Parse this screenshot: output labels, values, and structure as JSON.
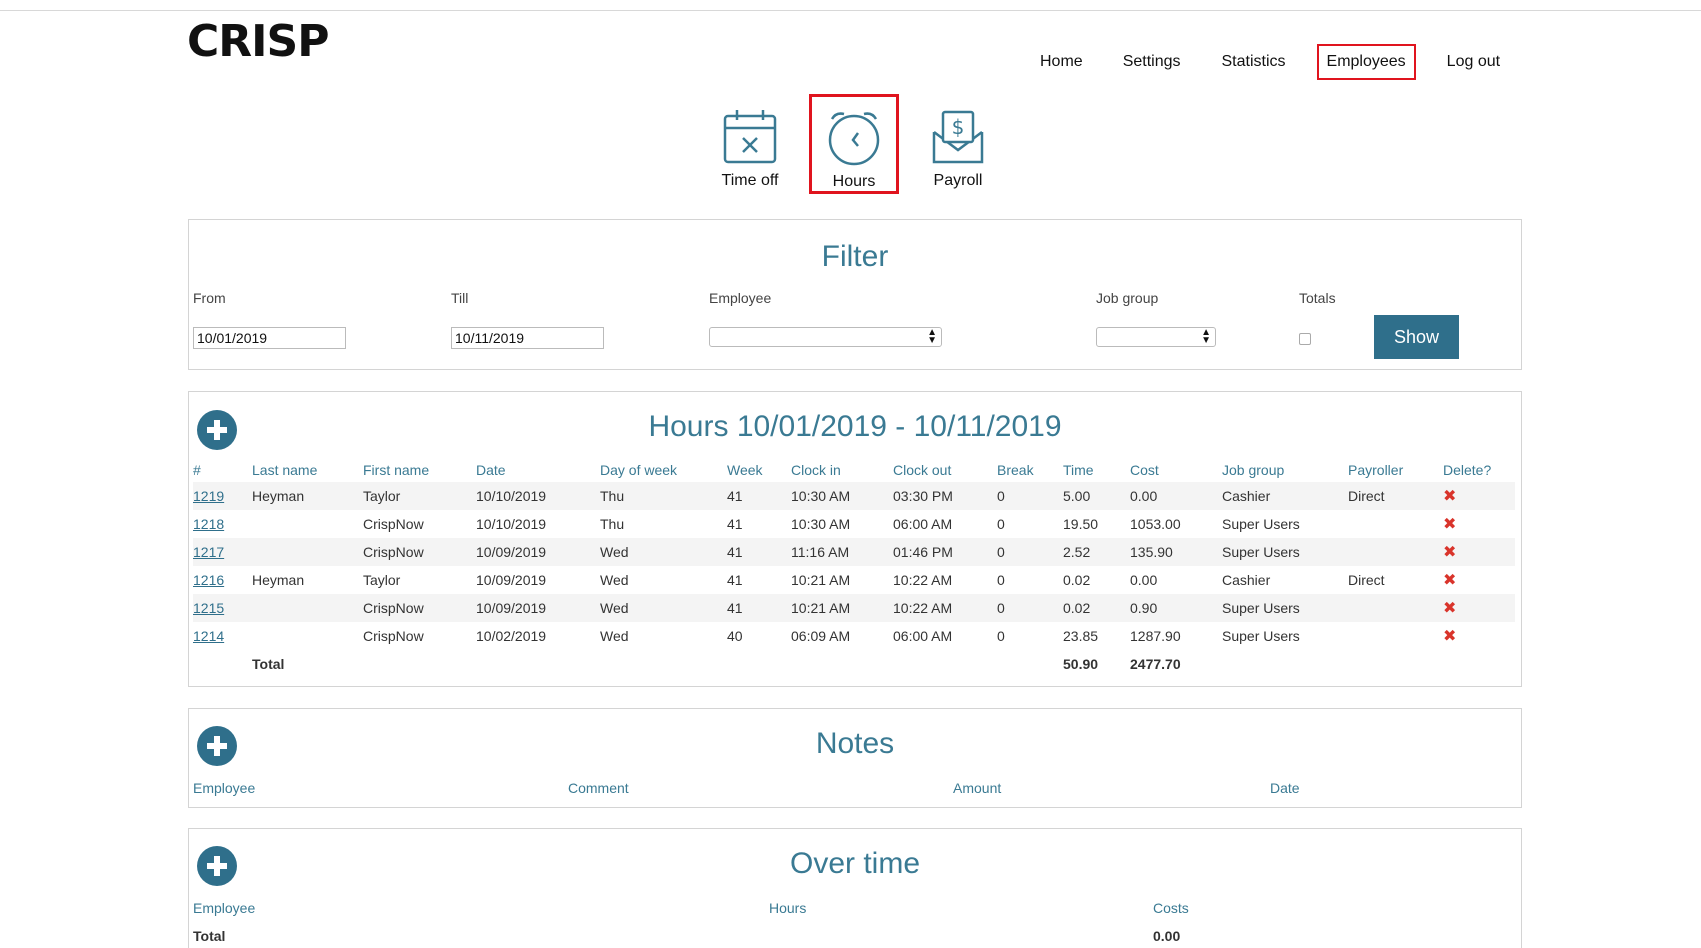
{
  "logo": "CRISP",
  "nav": [
    {
      "label": "Home"
    },
    {
      "label": "Settings"
    },
    {
      "label": "Statistics"
    },
    {
      "label": "Employees"
    },
    {
      "label": "Log out"
    }
  ],
  "subnav": [
    {
      "label": "Time off",
      "icon": "calendar-x-icon"
    },
    {
      "label": "Hours",
      "icon": "alarm-clock-icon"
    },
    {
      "label": "Payroll",
      "icon": "money-envelope-icon"
    }
  ],
  "filter": {
    "title": "Filter",
    "from_label": "From",
    "from_value": "10/01/2019",
    "till_label": "Till",
    "till_value": "10/11/2019",
    "employee_label": "Employee",
    "jobgroup_label": "Job group",
    "totals_label": "Totals",
    "show_label": "Show"
  },
  "hours": {
    "title": "Hours 10/01/2019 - 10/11/2019",
    "columns": [
      "#",
      "Last name",
      "First name",
      "Date",
      "Day of week",
      "Week",
      "Clock in",
      "Clock out",
      "Break",
      "Time",
      "Cost",
      "Job group",
      "Payroller",
      "Delete?"
    ],
    "rows": [
      [
        "1219",
        "Heyman",
        "Taylor",
        "10/10/2019",
        "Thu",
        "41",
        "10:30 AM",
        "03:30 PM",
        "0",
        "5.00",
        "0.00",
        "Cashier",
        "Direct"
      ],
      [
        "1218",
        "",
        "CrispNow",
        "10/10/2019",
        "Thu",
        "41",
        "10:30 AM",
        "06:00 AM",
        "0",
        "19.50",
        "1053.00",
        "Super Users",
        ""
      ],
      [
        "1217",
        "",
        "CrispNow",
        "10/09/2019",
        "Wed",
        "41",
        "11:16 AM",
        "01:46 PM",
        "0",
        "2.52",
        "135.90",
        "Super Users",
        ""
      ],
      [
        "1216",
        "Heyman",
        "Taylor",
        "10/09/2019",
        "Wed",
        "41",
        "10:21 AM",
        "10:22 AM",
        "0",
        "0.02",
        "0.00",
        "Cashier",
        "Direct"
      ],
      [
        "1215",
        "",
        "CrispNow",
        "10/09/2019",
        "Wed",
        "41",
        "10:21 AM",
        "10:22 AM",
        "0",
        "0.02",
        "0.90",
        "Super Users",
        ""
      ],
      [
        "1214",
        "",
        "CrispNow",
        "10/02/2019",
        "Wed",
        "40",
        "06:09 AM",
        "06:00 AM",
        "0",
        "23.85",
        "1287.90",
        "Super Users",
        ""
      ]
    ],
    "total_label": "Total",
    "total_time": "50.90",
    "total_cost": "2477.70"
  },
  "notes": {
    "title": "Notes",
    "columns": [
      "Employee",
      "Comment",
      "Amount",
      "Date"
    ]
  },
  "overtime": {
    "title": "Over time",
    "columns": [
      "Employee",
      "Hours",
      "Costs"
    ],
    "total_label": "Total",
    "total_costs": "0.00"
  },
  "colors": {
    "accent": "#2f6f8b",
    "title": "#3a7a93",
    "highlight": "#e0141e"
  }
}
